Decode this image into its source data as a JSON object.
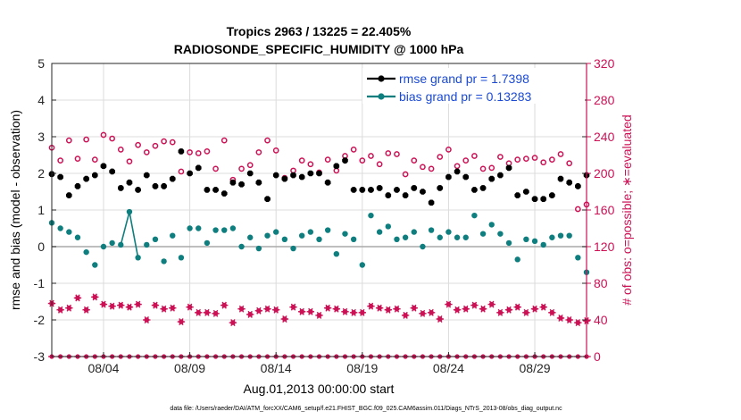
{
  "chart_data": {
    "type": "line",
    "title": "Tropics 2963 / 13225 = 22.405%",
    "subtitle": "RADIOSONDE_SPECIFIC_HUMIDITY @ 1000 hPa",
    "xlabel": "Aug.01,2013 00:00:00 start",
    "ylabel": "rmse and bias (model - observation)",
    "y2label": "# of obs: o=possible; ∗=evaluated",
    "footer": "data file: /Users/raeder/DAI/ATM_forcXX/CAM6_setup/f.e21.FHIST_BGC.f09_025.CAM6assim.011/Diags_NTrS_2013-08/obs_diag_output.nc",
    "xlim": [
      1,
      32
    ],
    "ylim": [
      -3,
      5
    ],
    "y2lim": [
      0,
      320
    ],
    "x_ticks": [
      4,
      9,
      14,
      19,
      24,
      29
    ],
    "x_tick_labels": [
      "08/04",
      "08/09",
      "08/14",
      "08/19",
      "08/24",
      "08/29"
    ],
    "y_ticks": [
      -3,
      -2,
      -1,
      0,
      1,
      2,
      3,
      4,
      5
    ],
    "y_tick_labels": [
      "-3",
      "-2",
      "-1",
      "0",
      "1",
      "2",
      "3",
      "4",
      "5"
    ],
    "y2_ticks": [
      0,
      40,
      80,
      120,
      160,
      200,
      240,
      280,
      320
    ],
    "y2_tick_labels": [
      "0",
      "40",
      "80",
      "120",
      "160",
      "200",
      "240",
      "280",
      "320"
    ],
    "legend": [
      "rmse grand pr = 1.7398",
      "bias grand pr = 0.13283"
    ],
    "legend_location": "top-right",
    "x": [
      1.0,
      1.5,
      2.0,
      2.5,
      3.0,
      3.5,
      4.0,
      4.5,
      5.0,
      5.5,
      6.0,
      6.5,
      7.0,
      7.5,
      8.0,
      8.5,
      9.0,
      9.5,
      10.0,
      10.5,
      11.0,
      11.5,
      12.0,
      12.5,
      13.0,
      13.5,
      14.0,
      14.5,
      15.0,
      15.5,
      16.0,
      16.5,
      17.0,
      17.5,
      18.0,
      18.5,
      19.0,
      19.5,
      20.0,
      20.5,
      21.0,
      21.5,
      22.0,
      22.5,
      23.0,
      23.5,
      24.0,
      24.5,
      25.0,
      25.5,
      26.0,
      26.5,
      27.0,
      27.5,
      28.0,
      28.5,
      29.0,
      29.5,
      30.0,
      30.5,
      31.0,
      31.5,
      32.0
    ],
    "series": [
      {
        "name": "rmse",
        "color": "#000000",
        "values": [
          1.98,
          1.9,
          1.4,
          1.65,
          1.85,
          1.95,
          2.2,
          2.05,
          1.6,
          1.75,
          1.55,
          1.95,
          1.65,
          1.65,
          1.85,
          2.6,
          2.0,
          2.15,
          1.55,
          1.55,
          1.45,
          1.75,
          1.7,
          2.0,
          1.75,
          1.3,
          1.95,
          1.85,
          1.95,
          1.9,
          2.0,
          2.0,
          1.75,
          2.2,
          2.35,
          1.55,
          1.55,
          1.55,
          1.6,
          1.4,
          1.55,
          1.4,
          1.6,
          1.5,
          1.2,
          1.6,
          1.9,
          2.05,
          1.9,
          1.55,
          1.6,
          1.85,
          1.95,
          2.15,
          1.4,
          1.5,
          1.3,
          1.3,
          1.4,
          1.85,
          1.75,
          1.65,
          1.95
        ]
      },
      {
        "name": "bias",
        "color": "#0e7e7e",
        "values": [
          0.65,
          0.5,
          0.4,
          0.25,
          -0.15,
          -0.5,
          0.0,
          0.1,
          0.05,
          0.95,
          -0.3,
          0.05,
          0.2,
          -0.4,
          0.3,
          -0.3,
          0.5,
          0.5,
          0.1,
          0.45,
          0.45,
          0.5,
          0.0,
          0.25,
          -0.05,
          0.3,
          0.4,
          0.2,
          -0.05,
          0.3,
          0.4,
          0.2,
          0.45,
          -0.2,
          0.35,
          0.2,
          -0.5,
          0.85,
          0.4,
          0.55,
          0.2,
          0.25,
          0.4,
          0.0,
          0.45,
          0.25,
          0.4,
          0.25,
          0.25,
          0.85,
          0.35,
          0.6,
          0.35,
          0.1,
          -0.35,
          0.2,
          0.15,
          0.05,
          0.25,
          0.3,
          0.3,
          -0.3,
          -0.7
        ]
      },
      {
        "name": "possible_obs",
        "color": "#cc1155",
        "values": [
          228,
          214,
          236,
          216,
          237,
          215,
          242,
          238,
          226,
          213,
          231,
          223,
          230,
          235,
          234,
          202,
          223,
          222,
          224,
          205,
          236,
          193,
          205,
          209,
          223,
          236,
          225,
          195,
          203,
          214,
          210,
          201,
          215,
          203,
          219,
          226,
          214,
          219,
          210,
          222,
          221,
          199,
          214,
          207,
          205,
          218,
          226,
          208,
          214,
          219,
          205,
          206,
          218,
          211,
          215,
          216,
          217,
          212,
          215,
          221,
          211,
          161,
          166
        ]
      },
      {
        "name": "evaluated_obs",
        "color": "#cc1155",
        "values": [
          58,
          51,
          53,
          64,
          51,
          65,
          57,
          55,
          56,
          54,
          57,
          40,
          56,
          52,
          53,
          38,
          54,
          48,
          48,
          47,
          56,
          37,
          52,
          46,
          50,
          52,
          51,
          41,
          54,
          49,
          49,
          45,
          53,
          52,
          49,
          48,
          48,
          55,
          53,
          51,
          52,
          45,
          53,
          47,
          48,
          41,
          57,
          51,
          52,
          56,
          52,
          57,
          48,
          51,
          54,
          48,
          52,
          54,
          48,
          42,
          40,
          37,
          39
        ]
      }
    ],
    "zero_line_y": 0
  }
}
